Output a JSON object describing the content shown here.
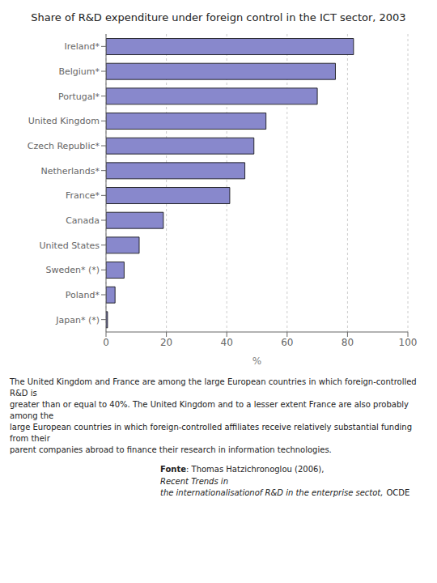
{
  "chart_data": {
    "type": "bar",
    "orientation": "horizontal",
    "title": "Share of R&D expenditure under foreign control in the ICT sector, 2003",
    "categories": [
      "Ireland*",
      "Belgium*",
      "Portugal*",
      "United Kingdom",
      "Czech Republic*",
      "Netherlands*",
      "France*",
      "Canada",
      "United States",
      "Sweden* (*)",
      "Poland*",
      "Japan* (*)"
    ],
    "values": [
      82,
      76,
      70,
      53,
      49,
      46,
      41,
      19,
      11,
      6,
      3,
      0.5
    ],
    "color": "#8888cc",
    "xlim": [
      0,
      100
    ],
    "xticks": [
      0,
      20,
      40,
      60,
      80,
      100
    ],
    "xlabel": "%",
    "grid": true,
    "annotations": [
      "The United Kingdom and France are among the large European  countries in which foreign-controlled R&D is\ngreater than or equal to 40%. The United Kingdom and to a lesser extent France are also probably among the\nlarge European countries in which foreign-controlled affiliates receive relatively substantial funding from their\nparent companies abroad to finance their research in information technologies.",
      "Fonte",
      ": Thomas Hatzichronoglou (2006), ",
      "Recent Trends in",
      "the internationalisationof R&D in the enterprise sectot,",
      "OCDE"
    ]
  }
}
